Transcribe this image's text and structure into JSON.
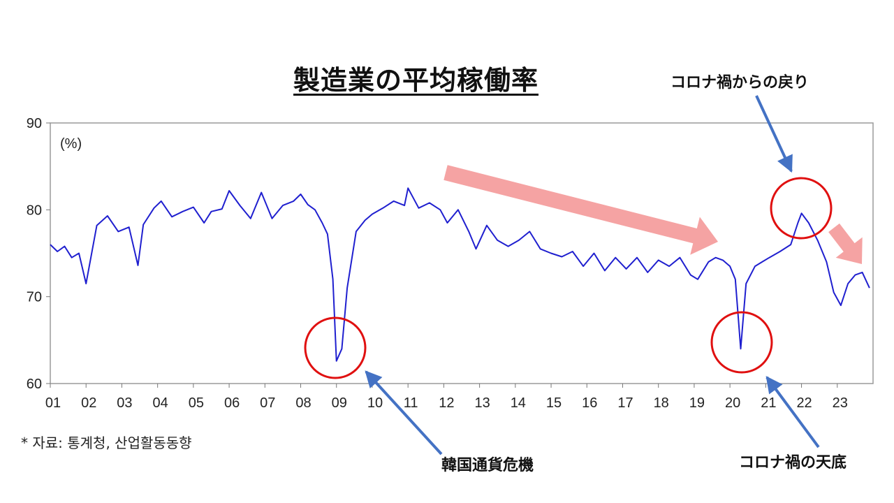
{
  "title": "製造業の平均稼働率",
  "unit_label": "(%)",
  "source_note": "* 자료: 통계청, 산업활동동향",
  "callouts": {
    "crisis": "韓国通貨危機",
    "covid_bottom": "コロナ禍の天底",
    "covid_recovery": "コロナ禍からの戻り"
  },
  "colors": {
    "line": "#1f1fcf",
    "circle": "#e01010",
    "arrow_blue": "#4472c4",
    "trend_arrow": "#f5a3a3"
  },
  "chart_data": {
    "type": "line",
    "title": "製造業の平均稼働率",
    "ylabel": "(%)",
    "xlabel": "",
    "ylim": [
      60,
      90
    ],
    "yticks": [
      60,
      70,
      80,
      90
    ],
    "xlim": [
      2001,
      2024
    ],
    "x_tick_labels": [
      "01",
      "02",
      "03",
      "04",
      "05",
      "06",
      "07",
      "08",
      "09",
      "10",
      "11",
      "12",
      "13",
      "14",
      "15",
      "16",
      "17",
      "18",
      "19",
      "20",
      "21",
      "22",
      "23"
    ],
    "grid": false,
    "series": [
      {
        "x": [
          2001.0,
          2001.2,
          2001.4,
          2001.6,
          2001.8,
          2002.0,
          2002.3,
          2002.6,
          2002.9,
          2003.2,
          2003.45,
          2003.6,
          2003.9,
          2004.1,
          2004.4,
          2004.7,
          2005.0,
          2005.3,
          2005.5,
          2005.8,
          2006.0,
          2006.3,
          2006.6,
          2006.9,
          2007.2,
          2007.5,
          2007.8,
          2008.0,
          2008.2,
          2008.4,
          2008.6,
          2008.75,
          2008.9,
          2009.0,
          2009.15,
          2009.3,
          2009.55,
          2009.8,
          2010.0,
          2010.3,
          2010.6,
          2010.9,
          2011.0,
          2011.3,
          2011.6,
          2011.9,
          2012.1,
          2012.4,
          2012.7,
          2012.9,
          2013.2,
          2013.5,
          2013.8,
          2014.1,
          2014.4,
          2014.7,
          2015.0,
          2015.3,
          2015.6,
          2015.9,
          2016.2,
          2016.5,
          2016.8,
          2017.1,
          2017.4,
          2017.7,
          2018.0,
          2018.3,
          2018.6,
          2018.9,
          2019.1,
          2019.4,
          2019.6,
          2019.8,
          2020.0,
          2020.15,
          2020.3,
          2020.45,
          2020.7,
          2020.9,
          2021.1,
          2021.4,
          2021.7,
          2021.9,
          2022.0,
          2022.2,
          2022.45,
          2022.7,
          2022.9,
          2023.1,
          2023.3,
          2023.5,
          2023.7,
          2023.9
        ],
        "y": [
          76.0,
          75.2,
          75.8,
          74.5,
          75.0,
          71.5,
          78.2,
          79.3,
          77.5,
          78.0,
          73.6,
          78.3,
          80.2,
          81.0,
          79.2,
          79.8,
          80.3,
          78.5,
          79.8,
          80.1,
          82.2,
          80.5,
          79.0,
          82.0,
          79.0,
          80.5,
          81.0,
          81.8,
          80.6,
          80.0,
          78.5,
          77.2,
          72.0,
          62.6,
          64.0,
          71.0,
          77.5,
          78.8,
          79.5,
          80.2,
          81.0,
          80.5,
          82.5,
          80.2,
          80.8,
          80.0,
          78.5,
          80.0,
          77.5,
          75.5,
          78.2,
          76.5,
          75.8,
          76.5,
          77.5,
          75.5,
          75.0,
          74.6,
          75.2,
          73.5,
          75.0,
          73.0,
          74.5,
          73.2,
          74.5,
          72.8,
          74.2,
          73.5,
          74.5,
          72.5,
          72.0,
          74.0,
          74.5,
          74.2,
          73.5,
          72.0,
          64.0,
          71.5,
          73.5,
          74.0,
          74.5,
          75.2,
          76.0,
          78.5,
          79.6,
          78.5,
          76.5,
          74.0,
          70.5,
          69.0,
          71.5,
          72.5,
          72.8,
          71.0
        ]
      }
    ]
  }
}
